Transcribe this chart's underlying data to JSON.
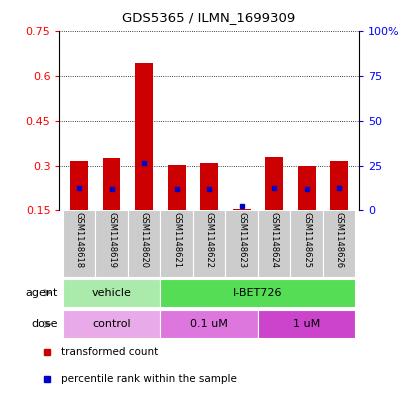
{
  "title": "GDS5365 / ILMN_1699309",
  "samples": [
    "GSM1148618",
    "GSM1148619",
    "GSM1148620",
    "GSM1148621",
    "GSM1148622",
    "GSM1148623",
    "GSM1148624",
    "GSM1148625",
    "GSM1148626"
  ],
  "bar_bottom": [
    0.15,
    0.15,
    0.15,
    0.15,
    0.15,
    0.15,
    0.15,
    0.15,
    0.15
  ],
  "bar_top": [
    0.315,
    0.325,
    0.645,
    0.302,
    0.308,
    0.155,
    0.328,
    0.3,
    0.315
  ],
  "percentile_values": [
    0.225,
    0.222,
    0.308,
    0.222,
    0.222,
    0.165,
    0.225,
    0.222,
    0.225
  ],
  "bar_color": "#cc0000",
  "percentile_color": "#0000cc",
  "ylim_left": [
    0.15,
    0.75
  ],
  "ylim_right": [
    0,
    100
  ],
  "yticks_left": [
    0.15,
    0.3,
    0.45,
    0.6,
    0.75
  ],
  "yticks_right": [
    0,
    25,
    50,
    75,
    100
  ],
  "ytick_labels_left": [
    "0.15",
    "0.3",
    "0.45",
    "0.6",
    "0.75"
  ],
  "ytick_labels_right": [
    "0",
    "25",
    "50",
    "75",
    "100%"
  ],
  "agent_groups": [
    {
      "label": "vehicle",
      "start": 0,
      "end": 3,
      "color": "#aaeaaa"
    },
    {
      "label": "I-BET726",
      "start": 3,
      "end": 9,
      "color": "#55dd55"
    }
  ],
  "dose_groups": [
    {
      "label": "control",
      "start": 0,
      "end": 3,
      "color": "#e8aae8"
    },
    {
      "label": "0.1 uM",
      "start": 3,
      "end": 6,
      "color": "#dd77dd"
    },
    {
      "label": "1 uM",
      "start": 6,
      "end": 9,
      "color": "#cc44cc"
    }
  ],
  "legend_items": [
    {
      "label": "transformed count",
      "color": "#cc0000"
    },
    {
      "label": "percentile rank within the sample",
      "color": "#0000cc"
    }
  ],
  "agent_label": "agent",
  "dose_label": "dose",
  "bar_width": 0.55,
  "bg_color": "#ffffff",
  "sample_bg_color": "#cccccc"
}
